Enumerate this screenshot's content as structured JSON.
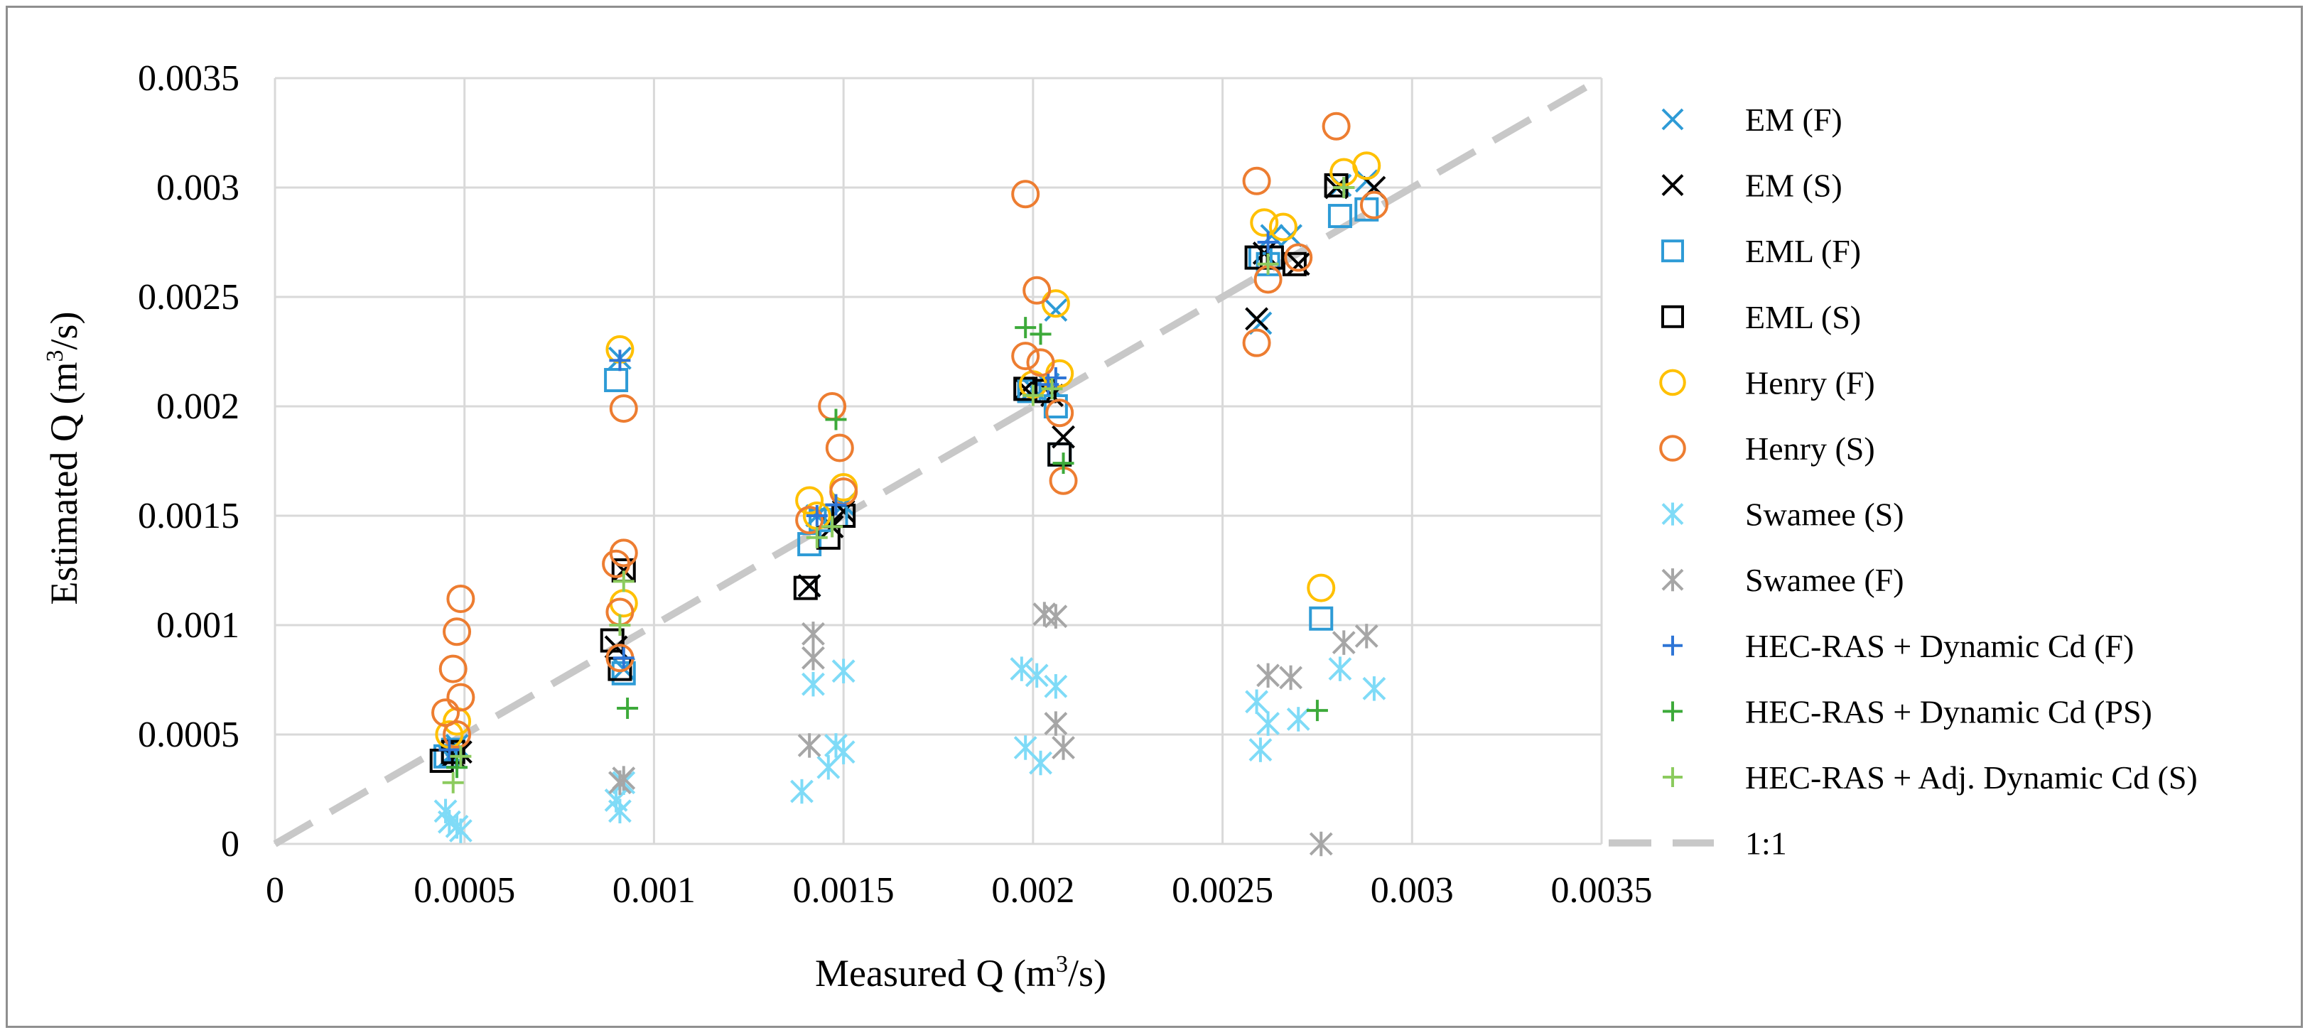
{
  "chart_data": {
    "type": "scatter",
    "xlabel": "Measured Q (m³/s)",
    "ylabel": "Estimated Q (m³/s)",
    "xlabel_parts": [
      "Measured Q (m",
      "3",
      "/s)"
    ],
    "ylabel_parts": [
      "Estimated Q (m",
      "3",
      "/s)"
    ],
    "xlim": [
      0,
      0.0035
    ],
    "ylim": [
      0,
      0.0035
    ],
    "x_ticks": [
      0,
      0.0005,
      0.001,
      0.0015,
      0.002,
      0.0025,
      0.003,
      0.0035
    ],
    "x_tick_labels": [
      "0",
      "0.0005",
      "0.001",
      "0.0015",
      "0.002",
      "0.0025",
      "0.003",
      "0.0035"
    ],
    "y_ticks": [
      0,
      0.0005,
      0.001,
      0.0015,
      0.002,
      0.0025,
      0.003,
      0.0035
    ],
    "y_tick_labels": [
      "0",
      "0.0005",
      "0.001",
      "0.0015",
      "0.002",
      "0.0025",
      "0.003",
      "0.0035"
    ],
    "grid": true,
    "legend_position": "right",
    "series": [
      {
        "name": "EM (F)",
        "marker": "x",
        "color": "#2E9BD6",
        "points": [
          [
            0.00046,
            0.0004
          ],
          [
            0.00048,
            0.00045
          ],
          [
            0.00091,
            0.00222
          ],
          [
            0.00092,
            0.0008
          ],
          [
            0.00141,
            0.00118
          ],
          [
            0.00143,
            0.0015
          ],
          [
            0.0015,
            0.00155
          ],
          [
            0.002,
            0.00208
          ],
          [
            0.00204,
            0.0021
          ],
          [
            0.00206,
            0.00244
          ],
          [
            0.0026,
            0.00238
          ],
          [
            0.00263,
            0.00278
          ],
          [
            0.00268,
            0.00278
          ],
          [
            0.00281,
            0.00301
          ],
          [
            0.00288,
            0.00303
          ]
        ]
      },
      {
        "name": "EM (S)",
        "marker": "x",
        "color": "#000000",
        "points": [
          [
            0.00047,
            0.0004
          ],
          [
            0.00049,
            0.00042
          ],
          [
            0.0009,
            0.0009
          ],
          [
            0.00092,
            0.00125
          ],
          [
            0.00141,
            0.00118
          ],
          [
            0.00147,
            0.00145
          ],
          [
            0.0015,
            0.00152
          ],
          [
            0.00198,
            0.00208
          ],
          [
            0.00205,
            0.00205
          ],
          [
            0.00208,
            0.00186
          ],
          [
            0.00259,
            0.0024
          ],
          [
            0.00261,
            0.0027
          ],
          [
            0.0027,
            0.00265
          ],
          [
            0.0028,
            0.003
          ],
          [
            0.0029,
            0.003
          ]
        ]
      },
      {
        "name": "EML (F)",
        "marker": "square",
        "color": "#2E9BD6",
        "points": [
          [
            0.00045,
            0.0004
          ],
          [
            0.00047,
            0.00043
          ],
          [
            0.0009,
            0.00212
          ],
          [
            0.00092,
            0.00078
          ],
          [
            0.00141,
            0.00137
          ],
          [
            0.00144,
            0.00148
          ],
          [
            0.00148,
            0.0015
          ],
          [
            0.00199,
            0.00207
          ],
          [
            0.00206,
            0.002
          ],
          [
            0.00207,
            0.00178
          ],
          [
            0.0026,
            0.00268
          ],
          [
            0.00262,
            0.00265
          ],
          [
            0.00276,
            0.00103
          ],
          [
            0.00281,
            0.00287
          ],
          [
            0.00288,
            0.0029
          ]
        ]
      },
      {
        "name": "EML (S)",
        "marker": "square",
        "color": "#000000",
        "points": [
          [
            0.00044,
            0.00038
          ],
          [
            0.00047,
            0.00042
          ],
          [
            0.00089,
            0.00093
          ],
          [
            0.00091,
            0.0008
          ],
          [
            0.00092,
            0.00125
          ],
          [
            0.0014,
            0.00117
          ],
          [
            0.00146,
            0.0014
          ],
          [
            0.0015,
            0.0015
          ],
          [
            0.00198,
            0.00208
          ],
          [
            0.00203,
            0.00207
          ],
          [
            0.00207,
            0.00178
          ],
          [
            0.00259,
            0.00268
          ],
          [
            0.00263,
            0.00268
          ],
          [
            0.00269,
            0.00265
          ],
          [
            0.0028,
            0.00301
          ]
        ]
      },
      {
        "name": "Henry (F)",
        "marker": "circle",
        "color": "#FFC000",
        "points": [
          [
            0.00046,
            0.0005
          ],
          [
            0.00048,
            0.00056
          ],
          [
            0.00091,
            0.00226
          ],
          [
            0.00092,
            0.0011
          ],
          [
            0.00141,
            0.00157
          ],
          [
            0.00143,
            0.0015
          ],
          [
            0.0015,
            0.00163
          ],
          [
            0.002,
            0.0021
          ],
          [
            0.00206,
            0.00247
          ],
          [
            0.00207,
            0.00215
          ],
          [
            0.00261,
            0.00284
          ],
          [
            0.00266,
            0.00282
          ],
          [
            0.00276,
            0.00117
          ],
          [
            0.00282,
            0.00307
          ],
          [
            0.00288,
            0.0031
          ]
        ]
      },
      {
        "name": "Henry (S)",
        "marker": "circle",
        "color": "#ED7D31",
        "points": [
          [
            0.00045,
            0.0006
          ],
          [
            0.00047,
            0.0008
          ],
          [
            0.00048,
            0.00097
          ],
          [
            0.00049,
            0.00112
          ],
          [
            0.00049,
            0.00067
          ],
          [
            0.00048,
            0.0005
          ],
          [
            0.0009,
            0.00128
          ],
          [
            0.00091,
            0.00106
          ],
          [
            0.00092,
            0.00133
          ],
          [
            0.00092,
            0.00199
          ],
          [
            0.00091,
            0.00085
          ],
          [
            0.00141,
            0.00148
          ],
          [
            0.00147,
            0.002
          ],
          [
            0.00149,
            0.00181
          ],
          [
            0.0015,
            0.00161
          ],
          [
            0.00198,
            0.00297
          ],
          [
            0.00198,
            0.00223
          ],
          [
            0.00201,
            0.00253
          ],
          [
            0.00202,
            0.0022
          ],
          [
            0.00207,
            0.00197
          ],
          [
            0.00208,
            0.00166
          ],
          [
            0.00259,
            0.00303
          ],
          [
            0.00259,
            0.00229
          ],
          [
            0.00262,
            0.00258
          ],
          [
            0.0027,
            0.00268
          ],
          [
            0.0028,
            0.00328
          ],
          [
            0.0029,
            0.00292
          ]
        ]
      },
      {
        "name": "Swamee (S)",
        "marker": "asterisk",
        "color": "#7FDBF7",
        "points": [
          [
            0.00045,
            0.00015
          ],
          [
            0.00046,
            0.0001
          ],
          [
            0.00048,
            8e-05
          ],
          [
            0.00049,
            6e-05
          ],
          [
            0.0009,
            0.0002
          ],
          [
            0.00091,
            0.00015
          ],
          [
            0.00092,
            0.00028
          ],
          [
            0.00139,
            0.00024
          ],
          [
            0.00142,
            0.00073
          ],
          [
            0.00146,
            0.00035
          ],
          [
            0.00148,
            0.00045
          ],
          [
            0.0015,
            0.00042
          ],
          [
            0.0015,
            0.00079
          ],
          [
            0.00197,
            0.0008
          ],
          [
            0.00198,
            0.00044
          ],
          [
            0.00201,
            0.00077
          ],
          [
            0.00202,
            0.00037
          ],
          [
            0.00206,
            0.00072
          ],
          [
            0.00259,
            0.00065
          ],
          [
            0.0026,
            0.00043
          ],
          [
            0.00262,
            0.00055
          ],
          [
            0.0027,
            0.00057
          ],
          [
            0.00281,
            0.0008
          ],
          [
            0.0029,
            0.00071
          ]
        ]
      },
      {
        "name": "Swamee (F)",
        "marker": "asterisk",
        "color": "#A6A6A6",
        "points": [
          [
            0.00091,
            0.00028
          ],
          [
            0.00092,
            0.0003
          ],
          [
            0.00141,
            0.00045
          ],
          [
            0.00142,
            0.00096
          ],
          [
            0.00142,
            0.00085
          ],
          [
            0.00203,
            0.00105
          ],
          [
            0.00206,
            0.00104
          ],
          [
            0.00206,
            0.00055
          ],
          [
            0.00208,
            0.00044
          ],
          [
            0.00262,
            0.00077
          ],
          [
            0.00268,
            0.00076
          ],
          [
            0.00276,
            0.0
          ],
          [
            0.00282,
            0.00092
          ],
          [
            0.00288,
            0.00095
          ]
        ]
      },
      {
        "name": "HEC-RAS + Dynamic Cd (F)",
        "marker": "plus",
        "color": "#2E75D6",
        "points": [
          [
            0.00046,
            0.00043
          ],
          [
            0.00091,
            0.00221
          ],
          [
            0.00092,
            0.00085
          ],
          [
            0.00143,
            0.0015
          ],
          [
            0.00148,
            0.00155
          ],
          [
            0.00204,
            0.0021
          ],
          [
            0.00206,
            0.00213
          ],
          [
            0.00262,
            0.00275
          ],
          [
            0.00282,
            0.003
          ]
        ]
      },
      {
        "name": "HEC-RAS + Dynamic Cd (PS)",
        "marker": "plus",
        "color": "#3DAA3A",
        "points": [
          [
            0.00048,
            0.00035
          ],
          [
            0.00093,
            0.00062
          ],
          [
            0.00148,
            0.00194
          ],
          [
            0.00198,
            0.00236
          ],
          [
            0.00202,
            0.00233
          ],
          [
            0.00208,
            0.00174
          ],
          [
            0.00275,
            0.00061
          ]
        ]
      },
      {
        "name": "HEC-RAS + Adj. Dynamic Cd (S)",
        "marker": "plus",
        "color": "#8CCB5E",
        "points": [
          [
            0.00047,
            0.00028
          ],
          [
            0.00049,
            0.0004
          ],
          [
            0.00091,
            0.001
          ],
          [
            0.00092,
            0.0012
          ],
          [
            0.00143,
            0.0014
          ],
          [
            0.00147,
            0.00145
          ],
          [
            0.002,
            0.00205
          ],
          [
            0.00205,
            0.00208
          ],
          [
            0.00262,
            0.00265
          ],
          [
            0.00282,
            0.003
          ]
        ]
      }
    ],
    "reference_line": {
      "name": "1:1",
      "color": "#C8C8C8",
      "style": "dashed",
      "from": [
        0,
        0
      ],
      "to": [
        0.0035,
        0.0035
      ]
    }
  }
}
